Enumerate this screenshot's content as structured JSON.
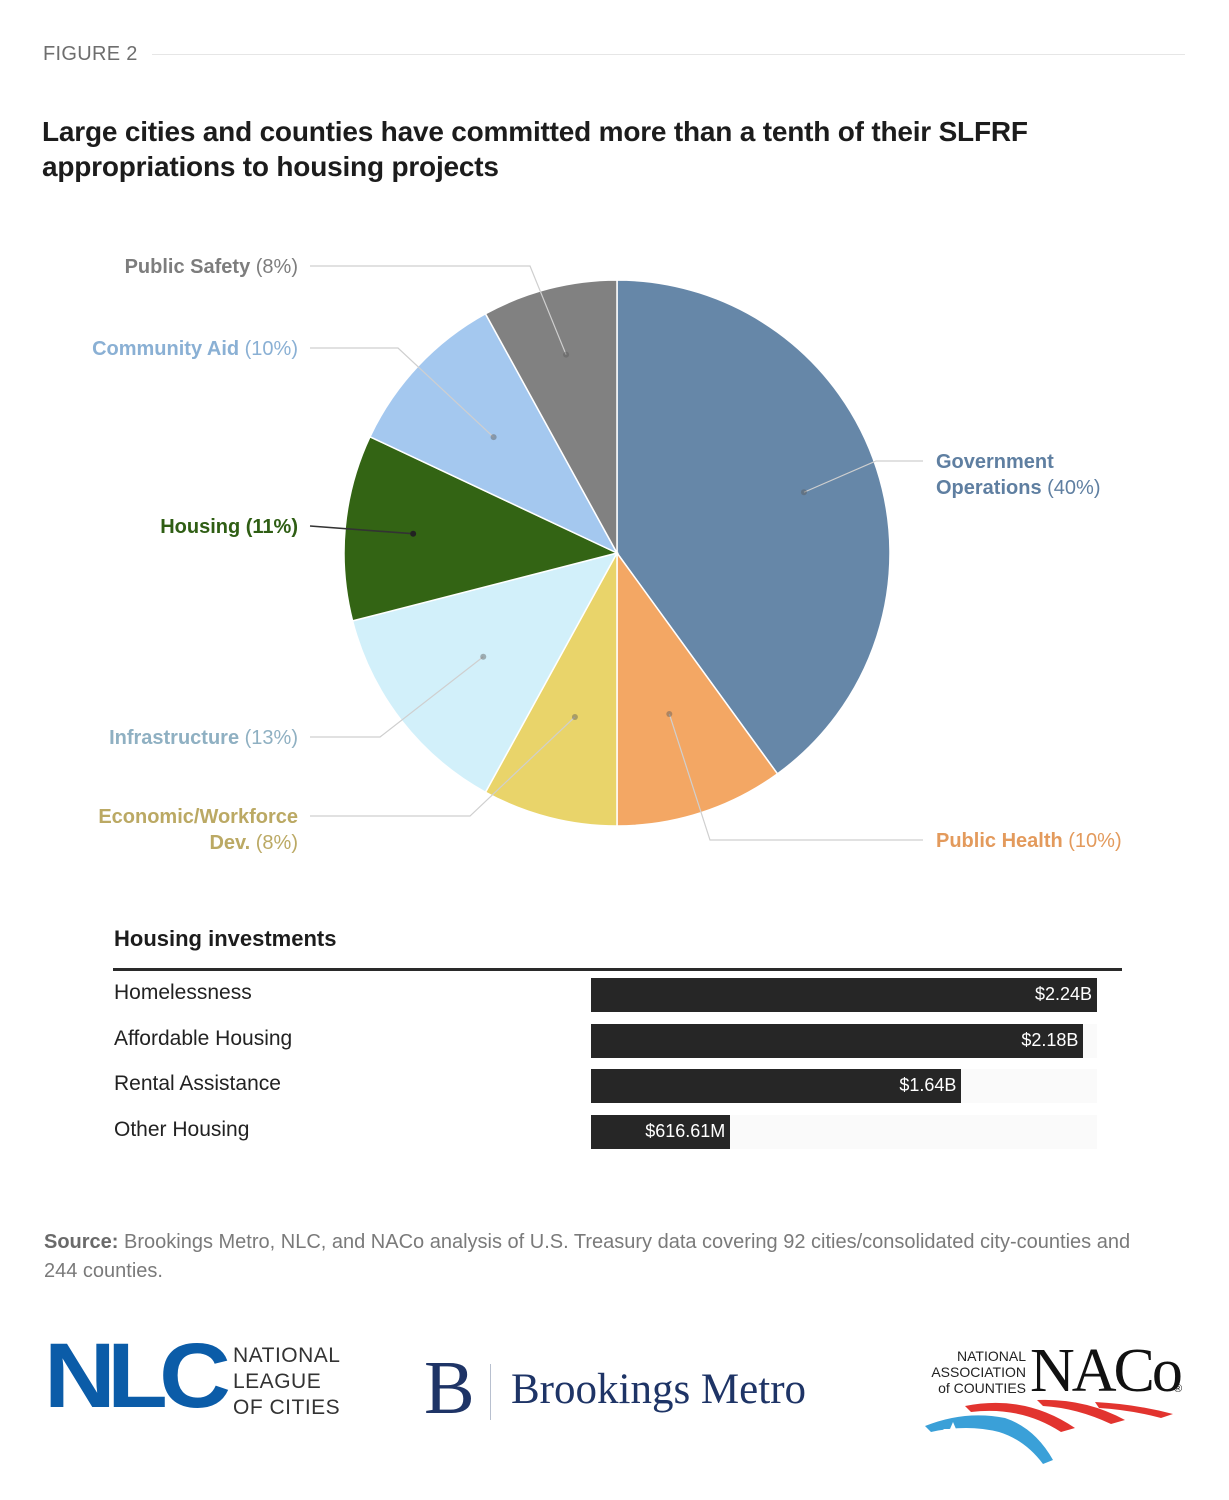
{
  "figure_label": "FIGURE 2",
  "title": "Large cities and counties have committed more than a tenth of their SLFRF appropriations to housing projects",
  "chart_data": [
    {
      "type": "pie",
      "title": "Large cities and counties have committed more than a tenth of their SLFRF appropriations to housing projects",
      "units": "percent of SLFRF appropriations",
      "start": "12 o'clock, clockwise",
      "slices": [
        {
          "key": "gov",
          "name": "Government Operations",
          "name_lines": [
            "Government",
            "Operations"
          ],
          "value": 40,
          "label_pct": "(40%)",
          "color": "#6687a8",
          "label_color": "#5f7fa1",
          "side": "right"
        },
        {
          "key": "health",
          "name": "Public Health",
          "name_lines": [
            "Public Health"
          ],
          "value": 10,
          "label_pct": "(10%)",
          "color": "#f3a764",
          "label_color": "#e39a5c",
          "side": "right"
        },
        {
          "key": "econ",
          "name": "Economic/Workforce Dev.",
          "name_lines": [
            "Economic/Workforce",
            "Dev."
          ],
          "value": 8,
          "label_pct": "(8%)",
          "color": "#e9d46a",
          "label_color": "#bba964",
          "side": "left"
        },
        {
          "key": "infra",
          "name": "Infrastructure",
          "name_lines": [
            "Infrastructure"
          ],
          "value": 13,
          "label_pct": "(13%)",
          "color": "#d2f0fa",
          "label_color": "#8fb0c2",
          "side": "left"
        },
        {
          "key": "housing",
          "name": "Housing",
          "name_lines": [
            "Housing"
          ],
          "value": 11,
          "label_pct": "(11%)",
          "color": "#336414",
          "label_color": "#2f5e14",
          "side": "left",
          "emphasis": true
        },
        {
          "key": "aid",
          "name": "Community Aid",
          "name_lines": [
            "Community Aid"
          ],
          "value": 10,
          "label_pct": "(10%)",
          "color": "#a4c8ef",
          "label_color": "#8ab0d4",
          "side": "left"
        },
        {
          "key": "safety",
          "name": "Public Safety",
          "name_lines": [
            "Public Safety"
          ],
          "value": 8,
          "label_pct": "(8%)",
          "color": "#818181",
          "label_color": "#7d7d7d",
          "side": "left"
        }
      ]
    },
    {
      "type": "bar",
      "orientation": "horizontal",
      "title": "Housing investments",
      "categories": [
        "Homelessness",
        "Affordable Housing",
        "Rental Assistance",
        "Other Housing"
      ],
      "values": [
        2240000000,
        2180000000,
        1640000000,
        616610000
      ],
      "value_labels": [
        "$2.24B",
        "$2.18B",
        "$1.64B",
        "$616.61M"
      ],
      "units": "USD",
      "bar_color": "#262626",
      "xlim": [
        0,
        2240000000
      ]
    }
  ],
  "source": {
    "label": "Source:",
    "text": " Brookings Metro, NLC, and NACo analysis of U.S. Treasury data covering 92 cities/consolidated city-counties and 244 counties."
  },
  "logos": {
    "nlc": {
      "mark": "NLC",
      "lines": [
        "NATIONAL",
        "LEAGUE",
        "OF CITIES"
      ],
      "color": "#0b5ca8"
    },
    "brookings": {
      "mark": "B",
      "text": "Brookings Metro",
      "color": "#1e3466"
    },
    "naco": {
      "lines": [
        "NATIONAL",
        "ASSOCIATION",
        "of COUNTIES"
      ],
      "mark": "NACo",
      "reg": "®",
      "red": "#e2342f",
      "blue": "#3aa0d8"
    }
  }
}
